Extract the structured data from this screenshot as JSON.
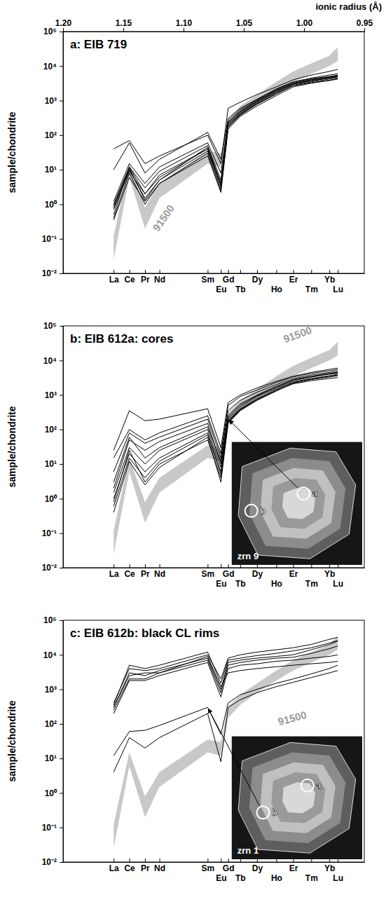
{
  "chart_data": [
    {
      "type": "line",
      "title": "a: EIB 719",
      "y_label": "sample/chondrite",
      "x2_label": "ionic radius (Å)",
      "log": "y",
      "x": [
        1.158,
        1.145,
        1.132,
        1.12,
        1.08,
        1.069,
        1.063,
        1.053,
        1.039,
        1.023,
        1.009,
        0.994,
        0.979,
        0.972
      ],
      "xlim": [
        1.2,
        0.95
      ],
      "xticks": [
        {
          "value": 1.158,
          "label": "La"
        },
        {
          "value": 1.145,
          "label": "Ce"
        },
        {
          "value": 1.132,
          "label": "Pr"
        },
        {
          "value": 1.12,
          "label": "Nd"
        },
        {
          "value": 1.08,
          "label": "Sm"
        },
        {
          "value": 1.069,
          "label": "Eu"
        },
        {
          "value": 1.063,
          "label": "Gd"
        },
        {
          "value": 1.053,
          "label": "Tb"
        },
        {
          "value": 1.039,
          "label": "Dy"
        },
        {
          "value": 1.023,
          "label": "Ho"
        },
        {
          "value": 1.009,
          "label": "Er"
        },
        {
          "value": 0.994,
          "label": "Tm"
        },
        {
          "value": 0.979,
          "label": "Yb"
        },
        {
          "value": 0.972,
          "label": "Lu"
        }
      ],
      "x2ticks": [
        {
          "value": 1.2,
          "label": "1.20"
        },
        {
          "value": 1.15,
          "label": "1.15"
        },
        {
          "value": 1.1,
          "label": "1.10"
        },
        {
          "value": 1.05,
          "label": "1.05"
        },
        {
          "value": 1.0,
          "label": "1.00"
        },
        {
          "value": 0.95,
          "label": "0.95"
        }
      ],
      "ylim": [
        0.01,
        100000
      ],
      "yticks": [
        {
          "value": 0.01,
          "label": "10⁻²"
        },
        {
          "value": 0.1,
          "label": "10⁻¹"
        },
        {
          "value": 1,
          "label": "10⁰"
        },
        {
          "value": 10,
          "label": "10¹"
        },
        {
          "value": 100,
          "label": "10²"
        },
        {
          "value": 1000,
          "label": "10³"
        },
        {
          "value": 10000,
          "label": "10⁴"
        },
        {
          "value": 100000,
          "label": "10⁵"
        }
      ],
      "series": [
        {
          "name": "91500",
          "type": "band",
          "color": "#c8c8c8",
          "lower": [
            0.025,
            6,
            0.2,
            1.5,
            15,
            12,
            150,
            350,
            800,
            1800,
            3500,
            6000,
            10000,
            14000
          ],
          "upper": [
            0.12,
            15,
            0.8,
            4,
            35,
            30,
            300,
            700,
            1500,
            3500,
            7000,
            12000,
            20000,
            35000
          ]
        },
        {
          "color": "#000000",
          "values": [
            40,
            70,
            15,
            25,
            100,
            15,
            600,
            900,
            1500,
            2500,
            4000,
            5500,
            7000,
            8000
          ]
        },
        {
          "color": "#000000",
          "values": [
            10,
            60,
            8,
            20,
            120,
            20,
            300,
            600,
            1100,
            2200,
            3500,
            4500,
            5500,
            6000
          ]
        },
        {
          "color": "#000000",
          "values": [
            1,
            12,
            2,
            7,
            40,
            4,
            200,
            450,
            900,
            1800,
            3000,
            3800,
            4500,
            5000
          ]
        },
        {
          "color": "#000000",
          "values": [
            0.8,
            10,
            1.5,
            5,
            35,
            3,
            180,
            400,
            800,
            1600,
            2800,
            3500,
            4200,
            4600
          ]
        },
        {
          "color": "#000000",
          "values": [
            0.5,
            12,
            3,
            9,
            50,
            5,
            220,
            500,
            1000,
            2000,
            3200,
            4100,
            4800,
            5200
          ]
        },
        {
          "color": "#000000",
          "values": [
            0.35,
            6,
            1.2,
            4,
            30,
            2.5,
            150,
            350,
            700,
            1400,
            2500,
            3200,
            3800,
            4200
          ]
        },
        {
          "color": "#000000",
          "values": [
            1.2,
            15,
            4,
            12,
            60,
            8,
            250,
            550,
            1050,
            2100,
            3400,
            4300,
            5000,
            5500
          ]
        },
        {
          "color": "#000000",
          "values": [
            0.7,
            9,
            2,
            6,
            40,
            3.5,
            200,
            420,
            850,
            1700,
            3000,
            3700,
            4500,
            4900
          ]
        },
        {
          "color": "#000000",
          "values": [
            0.9,
            11,
            1.3,
            5,
            45,
            4,
            230,
            480,
            950,
            1900,
            3100,
            4000,
            4700,
            5100
          ]
        },
        {
          "color": "#000000",
          "values": [
            0.4,
            8,
            1,
            4,
            25,
            2.2,
            170,
            380,
            780,
            1550,
            2700,
            3300,
            3900,
            4300
          ]
        }
      ]
    },
    {
      "type": "line",
      "title": "b: EIB 612a: cores",
      "y_label": "sample/chondrite",
      "log": "y",
      "x": [
        1.158,
        1.145,
        1.132,
        1.12,
        1.08,
        1.069,
        1.063,
        1.053,
        1.039,
        1.023,
        1.009,
        0.994,
        0.979,
        0.972
      ],
      "xlim": [
        1.2,
        0.95
      ],
      "xticks": [
        {
          "value": 1.158,
          "label": "La"
        },
        {
          "value": 1.145,
          "label": "Ce"
        },
        {
          "value": 1.132,
          "label": "Pr"
        },
        {
          "value": 1.12,
          "label": "Nd"
        },
        {
          "value": 1.08,
          "label": "Sm"
        },
        {
          "value": 1.069,
          "label": "Eu"
        },
        {
          "value": 1.063,
          "label": "Gd"
        },
        {
          "value": 1.053,
          "label": "Tb"
        },
        {
          "value": 1.039,
          "label": "Dy"
        },
        {
          "value": 1.023,
          "label": "Ho"
        },
        {
          "value": 1.009,
          "label": "Er"
        },
        {
          "value": 0.994,
          "label": "Tm"
        },
        {
          "value": 0.979,
          "label": "Yb"
        },
        {
          "value": 0.972,
          "label": "Lu"
        }
      ],
      "ylim": [
        0.01,
        100000
      ],
      "yticks": [
        {
          "value": 0.01,
          "label": "10⁻²"
        },
        {
          "value": 0.1,
          "label": "10⁻¹"
        },
        {
          "value": 1,
          "label": "10⁰"
        },
        {
          "value": 10,
          "label": "10¹"
        },
        {
          "value": 100,
          "label": "10²"
        },
        {
          "value": 1000,
          "label": "10³"
        },
        {
          "value": 10000,
          "label": "10⁴"
        },
        {
          "value": 100000,
          "label": "10⁵"
        }
      ],
      "series": [
        {
          "name": "91500",
          "type": "band",
          "color": "#c8c8c8",
          "lower": [
            0.025,
            6,
            0.2,
            1.5,
            15,
            12,
            150,
            350,
            800,
            1800,
            3500,
            6000,
            10000,
            14000
          ],
          "upper": [
            0.12,
            15,
            0.8,
            4,
            35,
            30,
            300,
            700,
            1500,
            3500,
            7000,
            12000,
            20000,
            35000
          ]
        },
        {
          "color": "#000000",
          "values": [
            25,
            350,
            180,
            200,
            400,
            30,
            600,
            1000,
            1600,
            2500,
            3500,
            4500,
            5500,
            6000
          ]
        },
        {
          "color": "#000000",
          "values": [
            15,
            100,
            50,
            80,
            250,
            20,
            500,
            900,
            1400,
            2300,
            3300,
            4200,
            5000,
            5500
          ]
        },
        {
          "color": "#000000",
          "values": [
            6,
            80,
            40,
            60,
            200,
            15,
            350,
            700,
            1200,
            2000,
            3000,
            3800,
            4500,
            5000
          ]
        },
        {
          "color": "#000000",
          "values": [
            2,
            50,
            25,
            45,
            150,
            10,
            250,
            550,
            1000,
            1800,
            2800,
            3500,
            4200,
            4600
          ]
        },
        {
          "color": "#000000",
          "values": [
            1.5,
            30,
            10,
            25,
            100,
            8,
            200,
            450,
            900,
            1600,
            2600,
            3300,
            4000,
            4300
          ]
        },
        {
          "color": "#000000",
          "values": [
            0.6,
            15,
            4,
            12,
            70,
            5,
            180,
            400,
            800,
            1500,
            2400,
            3000,
            3600,
            4000
          ]
        },
        {
          "color": "#000000",
          "values": [
            0.4,
            12,
            2.5,
            8,
            60,
            3,
            150,
            350,
            700,
            1300,
            2200,
            2800,
            3300,
            3600
          ]
        },
        {
          "color": "#000000",
          "values": [
            1,
            20,
            6,
            15,
            80,
            6,
            170,
            380,
            750,
            1400,
            2300,
            2900,
            3500,
            3800
          ]
        },
        {
          "color": "#000000",
          "values": [
            3,
            60,
            15,
            30,
            120,
            12,
            220,
            500,
            950,
            1700,
            2700,
            3400,
            4100,
            4500
          ]
        },
        {
          "color": "#000000",
          "values": [
            0.8,
            25,
            3,
            10,
            50,
            4,
            160,
            370,
            720,
            1350,
            2100,
            2600,
            3000,
            3200
          ]
        }
      ],
      "inset": {
        "title": "zrn 9",
        "spots": [
          "a",
          "b"
        ]
      }
    },
    {
      "type": "line",
      "title": "c: EIB 612b: black CL rims",
      "y_label": "sample/chondrite",
      "log": "y",
      "x": [
        1.158,
        1.145,
        1.132,
        1.12,
        1.08,
        1.069,
        1.063,
        1.053,
        1.039,
        1.023,
        1.009,
        0.994,
        0.979,
        0.972
      ],
      "xlim": [
        1.2,
        0.95
      ],
      "xticks": [
        {
          "value": 1.158,
          "label": "La"
        },
        {
          "value": 1.145,
          "label": "Ce"
        },
        {
          "value": 1.132,
          "label": "Pr"
        },
        {
          "value": 1.12,
          "label": "Nd"
        },
        {
          "value": 1.08,
          "label": "Sm"
        },
        {
          "value": 1.069,
          "label": "Eu"
        },
        {
          "value": 1.063,
          "label": "Gd"
        },
        {
          "value": 1.053,
          "label": "Tb"
        },
        {
          "value": 1.039,
          "label": "Dy"
        },
        {
          "value": 1.023,
          "label": "Ho"
        },
        {
          "value": 1.009,
          "label": "Er"
        },
        {
          "value": 0.994,
          "label": "Tm"
        },
        {
          "value": 0.979,
          "label": "Yb"
        },
        {
          "value": 0.972,
          "label": "Lu"
        }
      ],
      "ylim": [
        0.01,
        100000
      ],
      "yticks": [
        {
          "value": 0.01,
          "label": "10⁻²"
        },
        {
          "value": 0.1,
          "label": "10⁻¹"
        },
        {
          "value": 1,
          "label": "10⁰"
        },
        {
          "value": 10,
          "label": "10¹"
        },
        {
          "value": 100,
          "label": "10²"
        },
        {
          "value": 1000,
          "label": "10³"
        },
        {
          "value": 10000,
          "label": "10⁴"
        },
        {
          "value": 100000,
          "label": "10⁵"
        }
      ],
      "series": [
        {
          "name": "91500",
          "type": "band",
          "color": "#c8c8c8",
          "lower": [
            0.025,
            6,
            0.2,
            1.5,
            15,
            12,
            150,
            350,
            800,
            1800,
            3500,
            6000,
            10000,
            14000
          ],
          "upper": [
            0.12,
            15,
            0.8,
            4,
            35,
            30,
            300,
            700,
            1500,
            3500,
            7000,
            12000,
            20000,
            35000
          ]
        },
        {
          "color": "#000000",
          "values": [
            400,
            4000,
            3500,
            4000,
            10000,
            2000,
            8000,
            10000,
            12000,
            14000,
            16000,
            20000,
            28000,
            32000
          ]
        },
        {
          "color": "#000000",
          "values": [
            300,
            3000,
            2500,
            3500,
            8000,
            1000,
            6000,
            7000,
            8000,
            9000,
            10000,
            14000,
            20000,
            25000
          ]
        },
        {
          "color": "#000000",
          "values": [
            250,
            2000,
            2000,
            3000,
            7000,
            800,
            5000,
            6000,
            7000,
            8000,
            8500,
            11000,
            15000,
            18000
          ]
        },
        {
          "color": "#000000",
          "values": [
            350,
            5000,
            4000,
            5000,
            12000,
            1500,
            7000,
            8000,
            9500,
            11000,
            13000,
            16000,
            22000,
            26000
          ]
        },
        {
          "color": "#000000",
          "values": [
            200,
            1800,
            1800,
            2500,
            6000,
            600,
            4000,
            5000,
            5500,
            6500,
            7000,
            8000,
            9000,
            10000
          ]
        },
        {
          "color": "#000000",
          "values": [
            300,
            2500,
            3000,
            3000,
            9000,
            1200,
            3000,
            3500,
            4000,
            4500,
            5000,
            5500,
            6000,
            6500
          ]
        },
        {
          "color": "#000000",
          "values": [
            12,
            60,
            65,
            90,
            300,
            50,
            400,
            700,
            1000,
            1500,
            2000,
            2800,
            4000,
            5000
          ]
        },
        {
          "color": "#000000",
          "values": [
            4,
            40,
            20,
            40,
            200,
            8,
            300,
            500,
            800,
            1200,
            1600,
            2200,
            3000,
            3500
          ]
        }
      ],
      "inset": {
        "title": "zrn 1",
        "spots": [
          "a",
          "b"
        ]
      }
    }
  ]
}
